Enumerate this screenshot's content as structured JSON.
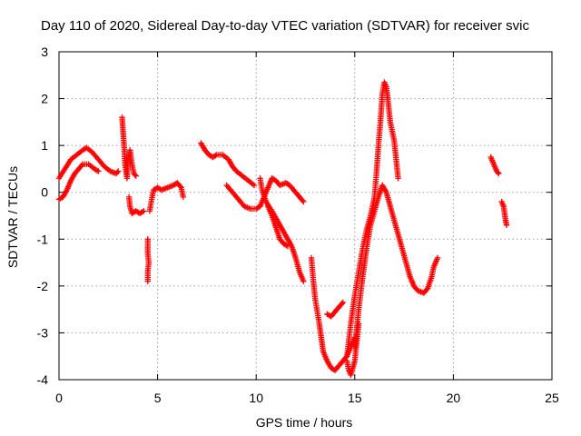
{
  "chart_data": {
    "type": "scatter",
    "title": "Day 110 of 2020, Sidereal Day-to-day VTEC variation (SDTVAR) for receiver svic",
    "xlabel": "GPS time / hours",
    "ylabel": "SDTVAR / TECUs",
    "xlim": [
      0,
      25
    ],
    "ylim": [
      -4,
      3
    ],
    "xticks": [
      "0",
      "5",
      "10",
      "15",
      "20",
      "25"
    ],
    "yticks": [
      "-4",
      "-3",
      "-2",
      "-1",
      "0",
      "1",
      "2",
      "3"
    ],
    "grid": true,
    "marker": "+",
    "series_color": "#ff0000",
    "segments": [
      {
        "name": "upper-trace-morning",
        "points": [
          [
            0,
            0.3
          ],
          [
            0.3,
            0.5
          ],
          [
            0.6,
            0.7
          ],
          [
            0.9,
            0.8
          ],
          [
            1.2,
            0.9
          ],
          [
            1.4,
            0.95
          ],
          [
            1.7,
            0.85
          ],
          [
            2.0,
            0.7
          ],
          [
            2.3,
            0.55
          ],
          [
            2.6,
            0.45
          ],
          [
            2.9,
            0.4
          ],
          [
            3.0,
            0.45
          ]
        ]
      },
      {
        "name": "lower-trace-morning",
        "points": [
          [
            0,
            -0.15
          ],
          [
            0.2,
            -0.1
          ],
          [
            0.4,
            0.05
          ],
          [
            0.6,
            0.25
          ],
          [
            0.8,
            0.4
          ],
          [
            1.0,
            0.5
          ],
          [
            1.2,
            0.6
          ],
          [
            1.5,
            0.6
          ],
          [
            1.8,
            0.5
          ],
          [
            2.0,
            0.45
          ]
        ]
      },
      {
        "name": "spike-3h",
        "points": [
          [
            3.2,
            1.6
          ],
          [
            3.25,
            1.3
          ],
          [
            3.3,
            1.0
          ],
          [
            3.35,
            0.6
          ],
          [
            3.45,
            0.3
          ],
          [
            3.5,
            0.7
          ],
          [
            3.6,
            0.9
          ],
          [
            3.7,
            0.6
          ],
          [
            3.8,
            0.4
          ],
          [
            3.9,
            0.35
          ]
        ]
      },
      {
        "name": "dip-3h",
        "points": [
          [
            3.55,
            -0.1
          ],
          [
            3.6,
            -0.3
          ],
          [
            3.7,
            -0.45
          ],
          [
            3.9,
            -0.4
          ],
          [
            4.1,
            -0.45
          ],
          [
            4.3,
            -0.4
          ]
        ]
      },
      {
        "name": "low-4h",
        "points": [
          [
            4.5,
            -1.0
          ],
          [
            4.5,
            -1.3
          ],
          [
            4.55,
            -1.5
          ],
          [
            4.5,
            -1.7
          ],
          [
            4.5,
            -1.9
          ]
        ]
      },
      {
        "name": "rise-5h",
        "points": [
          [
            4.6,
            -0.4
          ],
          [
            4.7,
            -0.15
          ],
          [
            4.8,
            0.05
          ],
          [
            5.0,
            0.1
          ],
          [
            5.2,
            0.05
          ],
          [
            5.5,
            0.1
          ],
          [
            5.8,
            0.15
          ],
          [
            6.0,
            0.2
          ],
          [
            6.2,
            0.1
          ],
          [
            6.3,
            -0.1
          ]
        ]
      },
      {
        "name": "morning-7h-upper",
        "points": [
          [
            7.2,
            1.05
          ],
          [
            7.4,
            0.9
          ],
          [
            7.6,
            0.8
          ],
          [
            7.8,
            0.75
          ],
          [
            8.0,
            0.8
          ],
          [
            8.3,
            0.8
          ],
          [
            8.6,
            0.7
          ],
          [
            8.8,
            0.55
          ],
          [
            9.0,
            0.45
          ],
          [
            9.3,
            0.35
          ],
          [
            9.6,
            0.25
          ],
          [
            9.9,
            0.15
          ]
        ]
      },
      {
        "name": "morning-7h-lower",
        "points": [
          [
            8.5,
            0.15
          ],
          [
            8.8,
            0.0
          ],
          [
            9.1,
            -0.15
          ],
          [
            9.4,
            -0.3
          ],
          [
            9.7,
            -0.35
          ],
          [
            10.0,
            -0.35
          ],
          [
            10.2,
            -0.3
          ],
          [
            10.4,
            -0.1
          ],
          [
            10.6,
            0.1
          ],
          [
            10.8,
            0.3
          ],
          [
            11.0,
            0.25
          ],
          [
            11.2,
            0.15
          ],
          [
            11.5,
            0.2
          ],
          [
            11.7,
            0.15
          ],
          [
            12.0,
            0.0
          ],
          [
            12.2,
            -0.1
          ],
          [
            12.4,
            -0.2
          ]
        ]
      },
      {
        "name": "descent-10h",
        "points": [
          [
            10.2,
            0.3
          ],
          [
            10.3,
            0.05
          ],
          [
            10.5,
            -0.2
          ],
          [
            10.8,
            -0.4
          ],
          [
            11.0,
            -0.55
          ],
          [
            11.2,
            -0.7
          ],
          [
            11.4,
            -0.85
          ],
          [
            11.6,
            -1.0
          ],
          [
            11.8,
            -1.15
          ],
          [
            12.0,
            -1.4
          ],
          [
            12.2,
            -1.7
          ],
          [
            12.4,
            -1.9
          ]
        ]
      },
      {
        "name": "descent-10h-b",
        "points": [
          [
            10.6,
            -0.3
          ],
          [
            10.8,
            -0.5
          ],
          [
            11.0,
            -0.75
          ],
          [
            11.2,
            -1.0
          ],
          [
            11.4,
            -1.1
          ],
          [
            11.6,
            -1.15
          ]
        ]
      },
      {
        "name": "drop-13h",
        "points": [
          [
            12.8,
            -1.4
          ],
          [
            12.9,
            -1.9
          ],
          [
            13.0,
            -2.3
          ],
          [
            13.2,
            -2.8
          ],
          [
            13.3,
            -3.1
          ],
          [
            13.4,
            -3.4
          ],
          [
            13.6,
            -3.6
          ],
          [
            13.8,
            -3.75
          ],
          [
            14.0,
            -3.8
          ],
          [
            14.2,
            -3.7
          ],
          [
            14.4,
            -3.6
          ],
          [
            14.6,
            -3.5
          ],
          [
            14.8,
            -3.3
          ],
          [
            15.0,
            -3.1
          ]
        ]
      },
      {
        "name": "minor-14h",
        "points": [
          [
            13.6,
            -2.6
          ],
          [
            13.8,
            -2.65
          ],
          [
            14.0,
            -2.55
          ],
          [
            14.2,
            -2.45
          ],
          [
            14.4,
            -2.35
          ]
        ]
      },
      {
        "name": "floor-14h",
        "points": [
          [
            14.6,
            -3.6
          ],
          [
            14.7,
            -3.8
          ],
          [
            14.8,
            -3.9
          ],
          [
            15.0,
            -3.6
          ],
          [
            15.1,
            -3.2
          ],
          [
            15.2,
            -2.8
          ]
        ]
      },
      {
        "name": "climb-15h-upper",
        "points": [
          [
            14.6,
            -3.5
          ],
          [
            14.8,
            -2.8
          ],
          [
            15.0,
            -2.2
          ],
          [
            15.2,
            -1.7
          ],
          [
            15.4,
            -1.2
          ],
          [
            15.6,
            -0.8
          ],
          [
            15.8,
            -0.5
          ],
          [
            16.0,
            -0.1
          ],
          [
            16.1,
            0.4
          ],
          [
            16.2,
            1.0
          ],
          [
            16.3,
            1.5
          ],
          [
            16.4,
            2.1
          ],
          [
            16.5,
            2.35
          ],
          [
            16.6,
            2.25
          ],
          [
            16.7,
            1.9
          ],
          [
            16.8,
            1.5
          ],
          [
            17.0,
            1.1
          ],
          [
            17.1,
            0.7
          ],
          [
            17.2,
            0.3
          ]
        ]
      },
      {
        "name": "climb-15h-lower",
        "points": [
          [
            15.0,
            -3.3
          ],
          [
            15.2,
            -2.5
          ],
          [
            15.4,
            -1.8
          ],
          [
            15.6,
            -1.2
          ],
          [
            15.8,
            -0.7
          ],
          [
            16.0,
            -0.4
          ],
          [
            16.2,
            -0.1
          ],
          [
            16.4,
            0.15
          ],
          [
            16.6,
            0.0
          ],
          [
            16.8,
            -0.3
          ],
          [
            17.0,
            -0.6
          ],
          [
            17.2,
            -0.9
          ],
          [
            17.4,
            -1.2
          ],
          [
            17.6,
            -1.5
          ],
          [
            17.8,
            -1.8
          ],
          [
            18.0,
            -2.0
          ],
          [
            18.2,
            -2.1
          ],
          [
            18.5,
            -2.15
          ],
          [
            18.7,
            -2.05
          ],
          [
            18.9,
            -1.8
          ],
          [
            19.0,
            -1.6
          ],
          [
            19.2,
            -1.4
          ]
        ]
      },
      {
        "name": "evening-22h",
        "points": [
          [
            21.9,
            0.75
          ],
          [
            22.0,
            0.65
          ],
          [
            22.1,
            0.55
          ],
          [
            22.2,
            0.45
          ],
          [
            22.3,
            0.4
          ]
        ]
      },
      {
        "name": "evening-22h-b",
        "points": [
          [
            22.45,
            -0.2
          ],
          [
            22.55,
            -0.3
          ],
          [
            22.6,
            -0.45
          ],
          [
            22.65,
            -0.6
          ],
          [
            22.7,
            -0.7
          ]
        ]
      }
    ]
  }
}
